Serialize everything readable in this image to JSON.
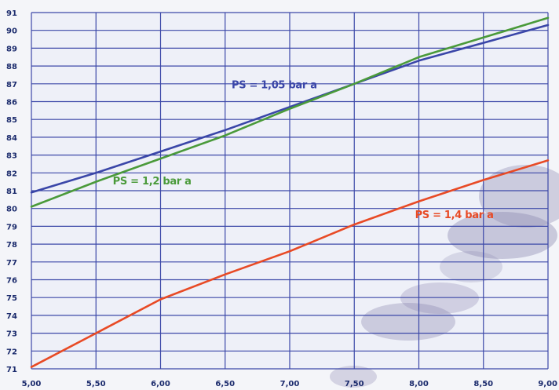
{
  "chart_data": {
    "type": "line",
    "title": "",
    "xlabel": "",
    "ylabel": "",
    "xlim": [
      5.0,
      9.0
    ],
    "ylim": [
      71,
      91
    ],
    "x_ticks": [
      5.0,
      5.5,
      6.0,
      6.5,
      7.0,
      7.5,
      8.0,
      8.5,
      9.0
    ],
    "x_tick_labels": [
      "5,00",
      "5,50",
      "6,00",
      "6,50",
      "7,00",
      "7,50",
      "8,00",
      "8,50",
      "9,00"
    ],
    "y_ticks": [
      71,
      72,
      73,
      74,
      75,
      76,
      77,
      78,
      79,
      80,
      81,
      82,
      83,
      84,
      85,
      86,
      87,
      88,
      89,
      90,
      91
    ],
    "y_tick_labels": [
      "71",
      "72",
      "73",
      "74",
      "75",
      "76",
      "77",
      "78",
      "79",
      "80",
      "81",
      "82",
      "83",
      "84",
      "85",
      "86",
      "87",
      "88",
      "89",
      "90",
      "91"
    ],
    "grid": true,
    "legend": "none",
    "series": [
      {
        "name": "PS = 1,05 bar a",
        "color": "#3a46a8",
        "x": [
          5.0,
          5.5,
          6.0,
          6.5,
          7.0,
          7.5,
          8.0,
          8.5,
          9.0
        ],
        "values": [
          80.9,
          82.0,
          83.2,
          84.4,
          85.7,
          87.0,
          88.3,
          89.3,
          90.3
        ]
      },
      {
        "name": "PS = 1,2 bar a",
        "color": "#4a9a3a",
        "x": [
          5.0,
          5.5,
          6.0,
          6.5,
          7.0,
          7.5,
          8.0,
          8.5,
          9.0
        ],
        "values": [
          80.1,
          81.5,
          82.8,
          84.1,
          85.6,
          87.0,
          88.5,
          89.6,
          90.7
        ]
      },
      {
        "name": "PS = 1,4 bar a",
        "color": "#e84a25",
        "x": [
          5.0,
          5.5,
          6.0,
          6.5,
          7.0,
          7.5,
          8.0,
          8.5,
          9.0
        ],
        "values": [
          71.1,
          73.0,
          74.9,
          76.3,
          77.6,
          79.1,
          80.4,
          81.6,
          82.7
        ]
      }
    ]
  }
}
